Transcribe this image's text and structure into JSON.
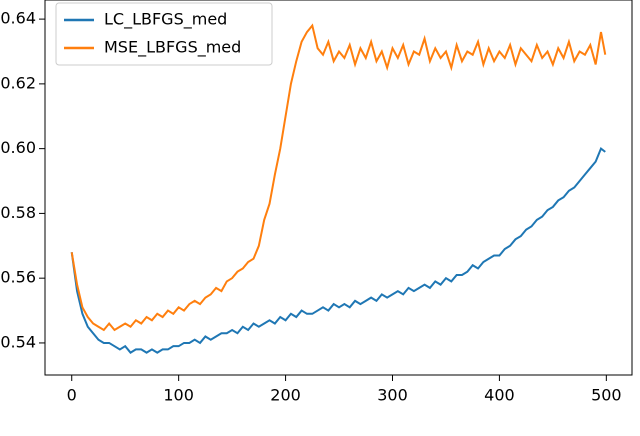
{
  "chart_data": {
    "type": "line",
    "x": [
      0,
      5,
      10,
      15,
      20,
      25,
      30,
      35,
      40,
      45,
      50,
      55,
      60,
      65,
      70,
      75,
      80,
      85,
      90,
      95,
      100,
      105,
      110,
      115,
      120,
      125,
      130,
      135,
      140,
      145,
      150,
      155,
      160,
      165,
      170,
      175,
      180,
      185,
      190,
      195,
      200,
      205,
      210,
      215,
      220,
      225,
      230,
      235,
      240,
      245,
      250,
      255,
      260,
      265,
      270,
      275,
      280,
      285,
      290,
      295,
      300,
      305,
      310,
      315,
      320,
      325,
      330,
      335,
      340,
      345,
      350,
      355,
      360,
      365,
      370,
      375,
      380,
      385,
      390,
      395,
      400,
      405,
      410,
      415,
      420,
      425,
      430,
      435,
      440,
      445,
      450,
      455,
      460,
      465,
      470,
      475,
      480,
      485,
      490,
      495,
      499
    ],
    "series": [
      {
        "name": "LC_LBFGS_med",
        "color": "#1f77b4",
        "values": [
          0.568,
          0.556,
          0.549,
          0.545,
          0.543,
          0.541,
          0.54,
          0.54,
          0.539,
          0.538,
          0.539,
          0.537,
          0.538,
          0.538,
          0.537,
          0.538,
          0.537,
          0.538,
          0.538,
          0.539,
          0.539,
          0.54,
          0.54,
          0.541,
          0.54,
          0.542,
          0.541,
          0.542,
          0.543,
          0.543,
          0.544,
          0.543,
          0.545,
          0.544,
          0.546,
          0.545,
          0.546,
          0.547,
          0.546,
          0.548,
          0.547,
          0.549,
          0.548,
          0.55,
          0.549,
          0.549,
          0.55,
          0.551,
          0.55,
          0.552,
          0.551,
          0.552,
          0.551,
          0.553,
          0.552,
          0.553,
          0.554,
          0.553,
          0.555,
          0.554,
          0.555,
          0.556,
          0.555,
          0.557,
          0.556,
          0.557,
          0.558,
          0.557,
          0.559,
          0.558,
          0.56,
          0.559,
          0.561,
          0.561,
          0.562,
          0.564,
          0.563,
          0.565,
          0.566,
          0.567,
          0.567,
          0.569,
          0.57,
          0.572,
          0.573,
          0.575,
          0.576,
          0.578,
          0.579,
          0.581,
          0.582,
          0.584,
          0.585,
          0.587,
          0.588,
          0.59,
          0.592,
          0.594,
          0.596,
          0.6,
          0.599
        ]
      },
      {
        "name": "MSE_LBFGS_med",
        "color": "#ff7f0e",
        "values": [
          0.568,
          0.558,
          0.551,
          0.548,
          0.546,
          0.545,
          0.544,
          0.546,
          0.544,
          0.545,
          0.546,
          0.545,
          0.547,
          0.546,
          0.548,
          0.547,
          0.549,
          0.548,
          0.55,
          0.549,
          0.551,
          0.55,
          0.552,
          0.553,
          0.552,
          0.554,
          0.555,
          0.557,
          0.556,
          0.559,
          0.56,
          0.562,
          0.563,
          0.565,
          0.566,
          0.57,
          0.578,
          0.583,
          0.592,
          0.6,
          0.61,
          0.62,
          0.627,
          0.633,
          0.636,
          0.638,
          0.631,
          0.629,
          0.633,
          0.627,
          0.63,
          0.628,
          0.632,
          0.626,
          0.631,
          0.628,
          0.633,
          0.627,
          0.63,
          0.625,
          0.631,
          0.628,
          0.632,
          0.626,
          0.63,
          0.629,
          0.634,
          0.627,
          0.631,
          0.628,
          0.63,
          0.625,
          0.632,
          0.627,
          0.63,
          0.629,
          0.633,
          0.626,
          0.631,
          0.627,
          0.63,
          0.628,
          0.632,
          0.626,
          0.631,
          0.629,
          0.627,
          0.632,
          0.628,
          0.63,
          0.626,
          0.631,
          0.628,
          0.633,
          0.627,
          0.63,
          0.629,
          0.632,
          0.626,
          0.636,
          0.629
        ]
      }
    ],
    "xlim": [
      -25,
      524
    ],
    "ylim": [
      0.5301,
      0.6459
    ],
    "xticks": [
      0,
      100,
      200,
      300,
      400,
      500
    ],
    "yticks": [
      0.54,
      0.56,
      0.58,
      {
        "value": 0.6,
        "label": "0.60"
      },
      0.62,
      0.64
    ],
    "legend": "upper left"
  }
}
